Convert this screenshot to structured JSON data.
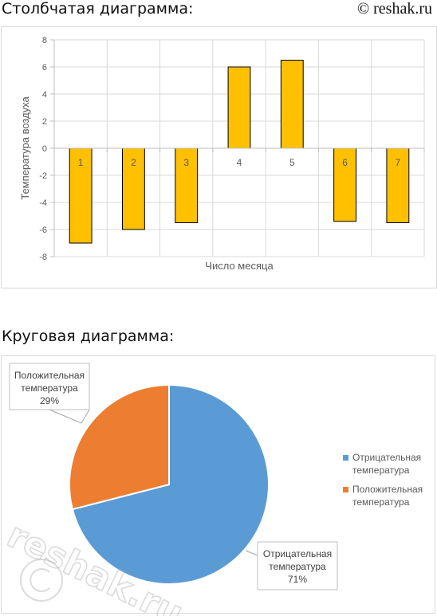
{
  "headings": {
    "bar": "Столбчатая диаграмма:",
    "pie": "Круговая диаграмма:",
    "site": "© reshak.ru"
  },
  "watermark_text": "reshak.ru",
  "chart_data": [
    {
      "type": "bar",
      "categories": [
        "1",
        "2",
        "3",
        "4",
        "5",
        "6",
        "7"
      ],
      "values": [
        -7,
        -6,
        -5.5,
        6,
        6.5,
        -5.4,
        -5.5
      ],
      "xlabel": "Число месяца",
      "ylabel": "Температура воздуха",
      "ylim": [
        -8,
        8
      ],
      "yticks": [
        "-8",
        "-6",
        "-4",
        "-2",
        "0",
        "2",
        "4",
        "6",
        "8"
      ],
      "grid": true,
      "bar_color": "#FFC000",
      "bar_edge_color": "#000000"
    },
    {
      "type": "pie",
      "slices": [
        {
          "label_line1": "Отрицательная",
          "label_line2": "температура",
          "percent_text": "71%",
          "value": 71,
          "color": "#5B9BD5"
        },
        {
          "label_line1": "Положительная",
          "label_line2": "температура",
          "percent_text": "29%",
          "value": 29,
          "color": "#ED7D31"
        }
      ],
      "legend": [
        {
          "line1": "Отрицательная",
          "line2": "температура",
          "color": "#5B9BD5"
        },
        {
          "line1": "Положительная",
          "line2": "температура",
          "color": "#ED7D31"
        }
      ],
      "legend_position": "right"
    }
  ]
}
